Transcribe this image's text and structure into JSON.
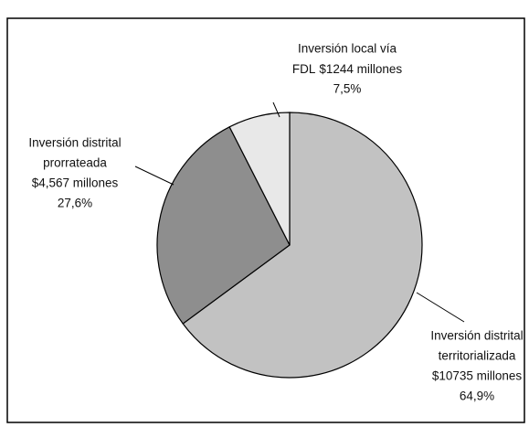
{
  "chart_data": {
    "type": "pie",
    "categories": [
      [
        "Inversión distrital",
        "territorializada"
      ],
      [
        "Inversión distrital",
        "prorrateada"
      ],
      [
        "Inversión local vía",
        "FDL"
      ]
    ],
    "amounts": [
      10735,
      4567,
      1244
    ],
    "amount_labels": [
      "$10735 millones",
      "$4,567 millones",
      "$1244 millones"
    ],
    "values": [
      64.9,
      27.6,
      7.5
    ],
    "value_labels": [
      "64,9%",
      "27,6%",
      "7,5%"
    ],
    "colors": [
      "#c2c2c2",
      "#8e8e8e",
      "#e8e8e8"
    ]
  }
}
